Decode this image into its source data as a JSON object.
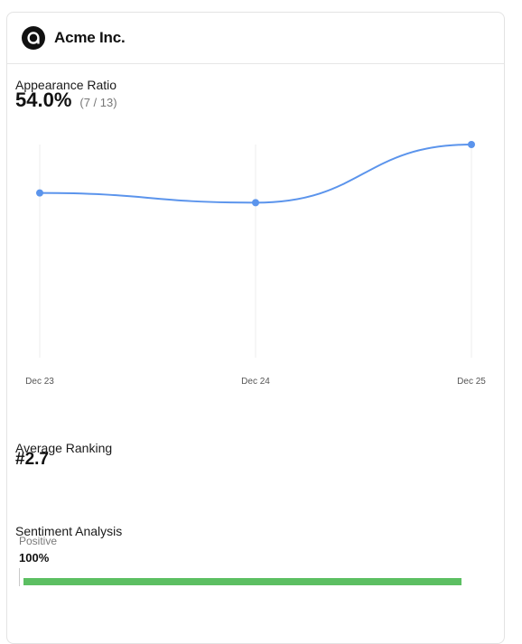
{
  "company": {
    "name": "Acme Inc.",
    "logo_icon": "acme-logo-icon"
  },
  "appearance": {
    "title": "Appearance Ratio",
    "value": "54.0%",
    "count": "(7 / 13)"
  },
  "chart_data": {
    "type": "line",
    "categories": [
      "Dec 23",
      "Dec 24",
      "Dec 25"
    ],
    "series": [
      {
        "values": [
          54.0,
          52.0,
          64.0
        ]
      }
    ],
    "ylim": [
      20,
      64
    ],
    "color": "#5b94ec",
    "grid": "vertical"
  },
  "ranking": {
    "title": "Average Ranking",
    "value": "#2.7"
  },
  "sentiment": {
    "title": "Sentiment Analysis",
    "label": "Positive",
    "value": "100%",
    "fraction": 1.0,
    "color": "#5cbf62"
  }
}
